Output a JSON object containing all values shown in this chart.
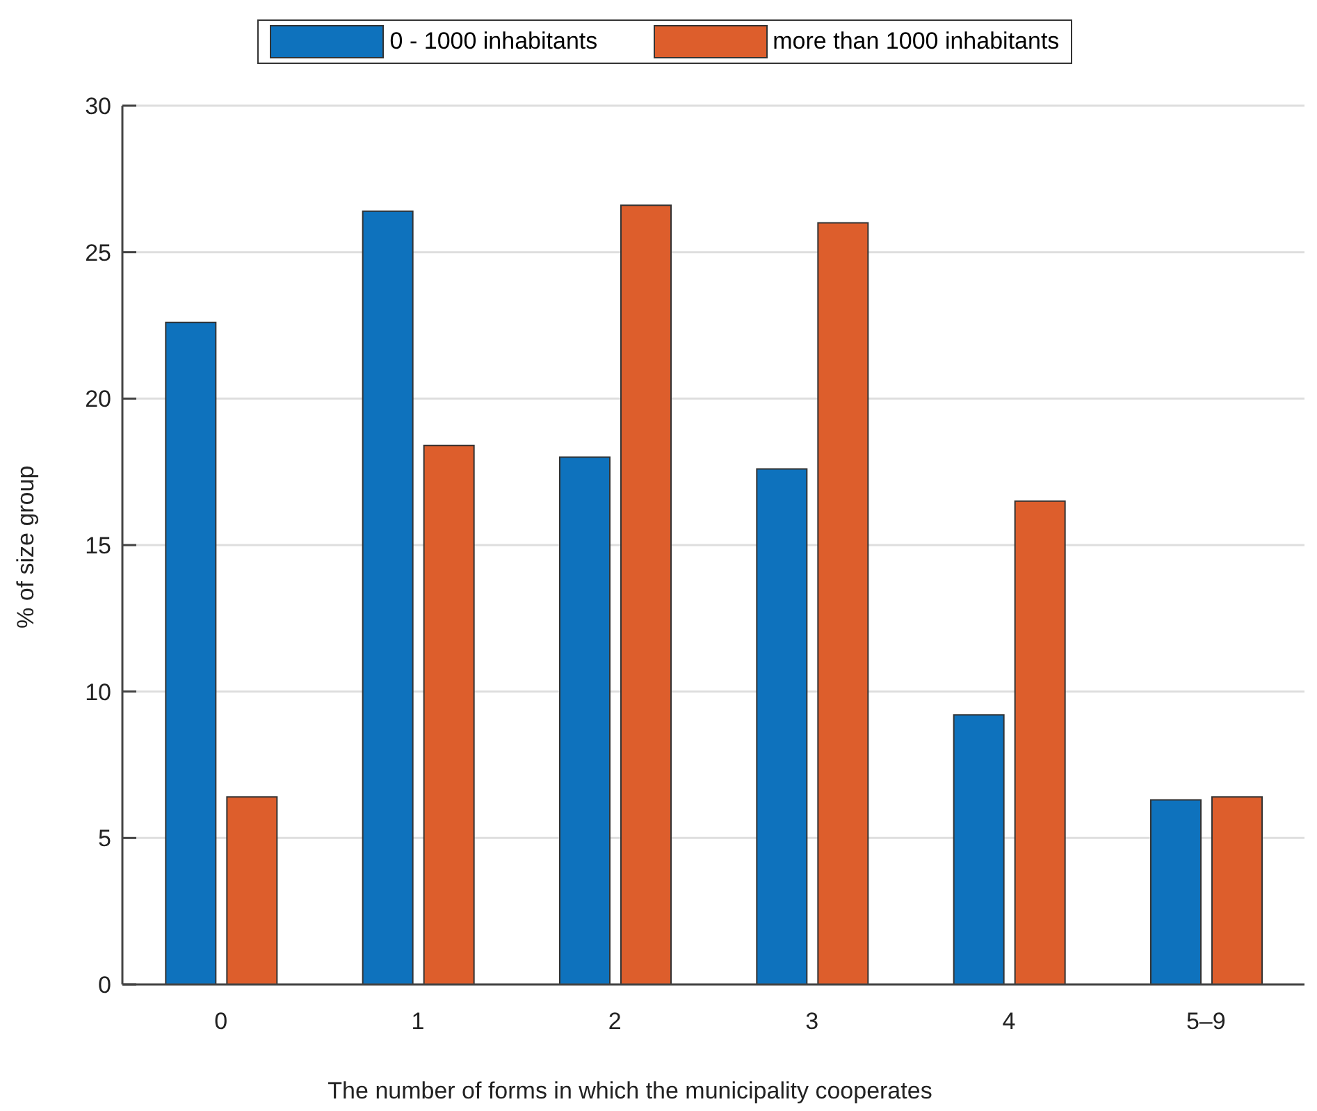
{
  "chart_data": {
    "type": "bar",
    "xlabel": "The number of forms in which the municipality cooperates",
    "ylabel": "% of size group",
    "categories": [
      "0",
      "1",
      "2",
      "3",
      "4",
      "5–9"
    ],
    "series": [
      {
        "name": "0 - 1000 inhabitants",
        "color": "#0e72bd",
        "values": [
          22.6,
          26.4,
          18.0,
          17.6,
          9.2,
          6.3
        ]
      },
      {
        "name": "more than 1000 inhabitants",
        "color": "#dd5e2c",
        "values": [
          6.4,
          18.4,
          26.6,
          26.0,
          16.5,
          6.4
        ]
      }
    ],
    "ylim": [
      0,
      30
    ],
    "yticks": [
      0,
      5,
      10,
      15,
      20,
      25,
      30
    ],
    "grid": "y",
    "legend": "top"
  }
}
